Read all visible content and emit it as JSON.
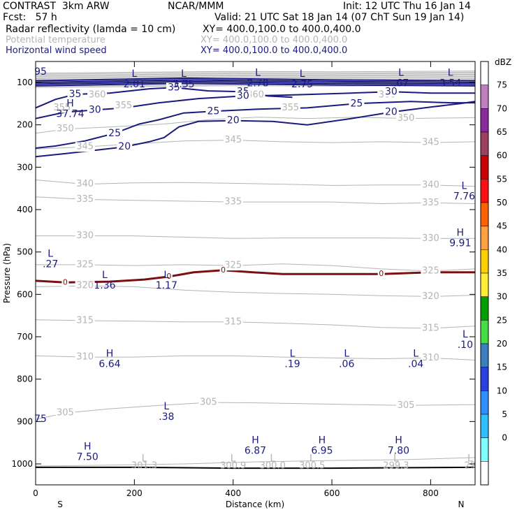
{
  "header": {
    "model": "CONTRAST  3km ARW",
    "org": "NCAR/MMM",
    "init": "Init: 12 UTC Thu 16 Jan 14",
    "fcst": "Fcst:   57 h",
    "valid": "Valid: 21 UTC Sat 18 Jan 14 (07 ChT Sun 19 Jan 14)",
    "fields": [
      {
        "name": "Radar reflectivity (lamda = 10 cm)",
        "xy": "XY= 400.0,100.0 to 400.0,400.0",
        "color": "#000000"
      },
      {
        "name": "Potential temperature",
        "xy": "XY= 400.0,100.0 to 400.0,400.0",
        "color": "#b4b4b4"
      },
      {
        "name": "Horizontal wind speed",
        "xy": "XY= 400.0,100.0 to 400.0,400.0",
        "color": "#1a1a80"
      }
    ]
  },
  "chart_data": {
    "type": "cross-section",
    "xlabel": "Distance (km)",
    "ylabel": "Pressure (hPa)",
    "xlim": [
      0,
      890
    ],
    "ylim": [
      1050,
      70
    ],
    "xticks": [
      "0",
      "200",
      "400",
      "600",
      "800"
    ],
    "xtick_values": [
      0,
      200,
      400,
      600,
      800
    ],
    "yticks": [
      "100",
      "200",
      "300",
      "400",
      "500",
      "600",
      "700",
      "800",
      "900",
      "1000"
    ],
    "ytick_values": [
      100,
      200,
      300,
      400,
      500,
      600,
      700,
      800,
      900,
      1000
    ],
    "x_end_labels": {
      "left": "S",
      "right": "N"
    },
    "colorbar": {
      "unit": "dBZ",
      "levels": [
        "75",
        "70",
        "65",
        "60",
        "55",
        "50",
        "45",
        "40",
        "35",
        "30",
        "25",
        "20",
        "15",
        "10",
        "5",
        "0"
      ],
      "colors": [
        "#ffffff",
        "#c080c0",
        "#8a2a9e",
        "#a04060",
        "#cc0000",
        "#ff1010",
        "#ff6000",
        "#ffa040",
        "#ffd000",
        "#ffee33",
        "#00a000",
        "#44dd44",
        "#3a80c0",
        "#2a40e0",
        "#3090ff",
        "#30c0ff",
        "#80ffff",
        "#ffffff"
      ]
    },
    "theta_contours": [
      {
        "label": "350",
        "points": [
          [
            0,
            220
          ],
          [
            60,
            210
          ],
          [
            150,
            205
          ],
          [
            260,
            198
          ],
          [
            350,
            188
          ],
          [
            450,
            182
          ],
          [
            550,
            185
          ],
          [
            650,
            182
          ],
          [
            750,
            185
          ],
          [
            890,
            183
          ]
        ]
      },
      {
        "label": "345",
        "points": [
          [
            0,
            257
          ],
          [
            100,
            252
          ],
          [
            200,
            245
          ],
          [
            300,
            238
          ],
          [
            400,
            236
          ],
          [
            500,
            240
          ],
          [
            600,
            242
          ],
          [
            700,
            240
          ],
          [
            800,
            242
          ],
          [
            890,
            240
          ]
        ]
      },
      {
        "label": "340",
        "points": [
          [
            0,
            330
          ],
          [
            100,
            340
          ],
          [
            200,
            337
          ],
          [
            300,
            336
          ],
          [
            400,
            338
          ],
          [
            500,
            340
          ],
          [
            600,
            343
          ],
          [
            700,
            342
          ],
          [
            800,
            342
          ],
          [
            890,
            345
          ]
        ]
      },
      {
        "label": "335",
        "points": [
          [
            0,
            370
          ],
          [
            100,
            376
          ],
          [
            200,
            378
          ],
          [
            300,
            380
          ],
          [
            400,
            382
          ],
          [
            500,
            382
          ],
          [
            600,
            382
          ],
          [
            700,
            386
          ],
          [
            800,
            384
          ],
          [
            890,
            386
          ]
        ]
      },
      {
        "label": "330",
        "points": [
          [
            0,
            462
          ],
          [
            100,
            462
          ],
          [
            200,
            462
          ],
          [
            300,
            465
          ],
          [
            400,
            468
          ],
          [
            500,
            467
          ],
          [
            600,
            467
          ],
          [
            700,
            467
          ],
          [
            800,
            468
          ],
          [
            890,
            468
          ]
        ]
      },
      {
        "label": "325",
        "points": [
          [
            0,
            530
          ],
          [
            100,
            530
          ],
          [
            200,
            532
          ],
          [
            300,
            530
          ],
          [
            400,
            532
          ],
          [
            500,
            528
          ],
          [
            600,
            532
          ],
          [
            700,
            540
          ],
          [
            800,
            545
          ],
          [
            890,
            540
          ]
        ]
      },
      {
        "label": "320",
        "points": [
          [
            0,
            582
          ],
          [
            100,
            580
          ],
          [
            200,
            582
          ],
          [
            300,
            590
          ],
          [
            400,
            595
          ],
          [
            500,
            598
          ],
          [
            600,
            600
          ],
          [
            700,
            603
          ],
          [
            800,
            605
          ],
          [
            890,
            602
          ]
        ]
      },
      {
        "label": "315",
        "points": [
          [
            0,
            660
          ],
          [
            100,
            662
          ],
          [
            200,
            663
          ],
          [
            300,
            665
          ],
          [
            400,
            665
          ],
          [
            500,
            668
          ],
          [
            600,
            672
          ],
          [
            700,
            678
          ],
          [
            800,
            680
          ],
          [
            890,
            675
          ]
        ]
      },
      {
        "label": "310",
        "points": [
          [
            0,
            745
          ],
          [
            100,
            748
          ],
          [
            200,
            748
          ],
          [
            300,
            745
          ],
          [
            400,
            745
          ],
          [
            500,
            748
          ],
          [
            600,
            750
          ],
          [
            700,
            752
          ],
          [
            800,
            750
          ],
          [
            890,
            755
          ]
        ]
      },
      {
        "label": "305",
        "points": [
          [
            0,
            895
          ],
          [
            60,
            880
          ],
          [
            150,
            870
          ],
          [
            250,
            862
          ],
          [
            350,
            855
          ],
          [
            450,
            856
          ],
          [
            550,
            858
          ],
          [
            650,
            860
          ],
          [
            750,
            862
          ],
          [
            890,
            860
          ]
        ]
      },
      {
        "label": "300",
        "points": [
          [
            0,
            1005
          ],
          [
            150,
            1003
          ],
          [
            300,
            1000
          ],
          [
            450,
            995
          ],
          [
            600,
            992
          ],
          [
            750,
            990
          ],
          [
            890,
            985
          ]
        ]
      }
    ],
    "theta_contour_labels": [
      "360",
      "355",
      "350",
      "345",
      "340",
      "335",
      "330",
      "325",
      "320",
      "315",
      "310",
      "305"
    ],
    "wind_contours": [
      {
        "label": "35",
        "points": [
          [
            0,
            160
          ],
          [
            40,
            140
          ],
          [
            80,
            128
          ],
          [
            150,
            125
          ],
          [
            230,
            115
          ],
          [
            280,
            112
          ],
          [
            350,
            120
          ],
          [
            420,
            122
          ],
          [
            470,
            132
          ],
          [
            520,
            135
          ]
        ]
      },
      {
        "label": "30",
        "points": [
          [
            0,
            185
          ],
          [
            60,
            170
          ],
          [
            120,
            165
          ],
          [
            180,
            160
          ],
          [
            250,
            148
          ],
          [
            330,
            138
          ],
          [
            420,
            132
          ],
          [
            500,
            130
          ],
          [
            560,
            128
          ],
          [
            640,
            125
          ],
          [
            720,
            122
          ],
          [
            800,
            125
          ],
          [
            890,
            125
          ]
        ]
      },
      {
        "label": "25",
        "points": [
          [
            0,
            255
          ],
          [
            40,
            250
          ],
          [
            100,
            238
          ],
          [
            160,
            220
          ],
          [
            210,
            198
          ],
          [
            250,
            188
          ],
          [
            300,
            172
          ],
          [
            360,
            168
          ],
          [
            450,
            163
          ],
          [
            550,
            160
          ],
          [
            650,
            150
          ],
          [
            760,
            145
          ],
          [
            840,
            148
          ],
          [
            890,
            148
          ]
        ]
      },
      {
        "label": "20",
        "points": [
          [
            0,
            275
          ],
          [
            60,
            268
          ],
          [
            120,
            260
          ],
          [
            180,
            252
          ],
          [
            230,
            240
          ],
          [
            260,
            230
          ],
          [
            290,
            205
          ],
          [
            330,
            192
          ],
          [
            400,
            190
          ],
          [
            480,
            192
          ],
          [
            550,
            200
          ],
          [
            640,
            185
          ],
          [
            720,
            170
          ],
          [
            800,
            158
          ],
          [
            860,
            150
          ],
          [
            890,
            145
          ]
        ]
      }
    ],
    "freezing_line": {
      "label": "0",
      "points": [
        [
          0,
          568
        ],
        [
          60,
          572
        ],
        [
          150,
          570
        ],
        [
          220,
          565
        ],
        [
          270,
          558
        ],
        [
          320,
          548
        ],
        [
          380,
          543
        ],
        [
          440,
          548
        ],
        [
          500,
          552
        ],
        [
          600,
          552
        ],
        [
          700,
          552
        ],
        [
          800,
          548
        ],
        [
          890,
          548
        ]
      ]
    },
    "surface_line": {
      "points": [
        [
          0,
          1008
        ],
        [
          200,
          1008
        ],
        [
          400,
          1010
        ],
        [
          600,
          1010
        ],
        [
          890,
          1008
        ]
      ]
    },
    "extrema": [
      {
        "type": "H",
        "value": "37.74",
        "x": 70,
        "p": 150
      },
      {
        "type": "L",
        "value": "2.01",
        "x": 200,
        "p": 80
      },
      {
        "type": "L",
        "value": "3.35",
        "x": 300,
        "p": 80
      },
      {
        "type": "L",
        "value": "2.78",
        "x": 450,
        "p": 78
      },
      {
        "type": "L",
        "value": "2.75",
        "x": 540,
        "p": 80
      },
      {
        "type": "L",
        "value": ".67",
        "x": 740,
        "p": 78
      },
      {
        "type": "L",
        "value": "3.54",
        "x": 840,
        "p": 78
      },
      {
        "type": "L",
        "value": "7.76",
        "x": 868,
        "p": 345
      },
      {
        "type": "H",
        "value": "9.91",
        "x": 860,
        "p": 455
      },
      {
        "type": "L",
        "value": ".27",
        "x": 30,
        "p": 505
      },
      {
        "type": "L",
        "value": "1.36",
        "x": 140,
        "p": 555
      },
      {
        "type": "L",
        "value": "1.17",
        "x": 265,
        "p": 555
      },
      {
        "type": "L",
        "value": ".10",
        "x": 870,
        "p": 695
      },
      {
        "type": "H",
        "value": "6.64",
        "x": 150,
        "p": 740
      },
      {
        "type": "L",
        "value": ".19",
        "x": 520,
        "p": 740
      },
      {
        "type": "L",
        "value": ".06",
        "x": 630,
        "p": 740
      },
      {
        "type": "L",
        "value": ".04",
        "x": 770,
        "p": 740
      },
      {
        "type": "L",
        "value": ".38",
        "x": 265,
        "p": 865
      },
      {
        "type": "H",
        "value": "6.87",
        "x": 445,
        "p": 945
      },
      {
        "type": "H",
        "value": "6.95",
        "x": 580,
        "p": 945
      },
      {
        "type": "H",
        "value": "7.80",
        "x": 735,
        "p": 945
      },
      {
        "type": "H",
        "value": "7.50",
        "x": 105,
        "p": 960
      }
    ],
    "grey_low_labels": [
      "301.3",
      "300.9",
      "300.0",
      "300.5",
      "299.3",
      "29"
    ],
    "edge_labels": [
      "95",
      "75"
    ]
  }
}
